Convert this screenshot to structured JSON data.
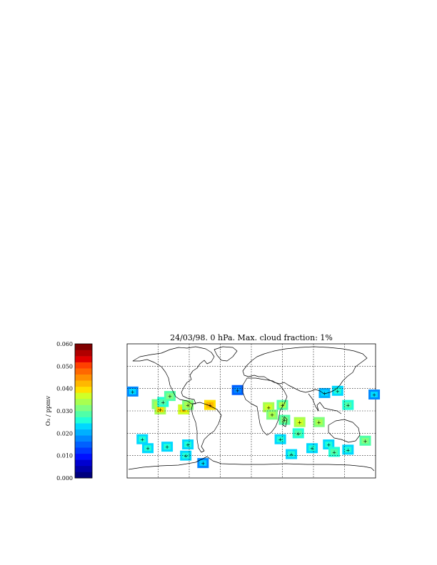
{
  "chart_data": {
    "type": "heatmap",
    "title": "24/03/98. 0 hPa. Max. cloud fraction: 1%",
    "colorbar": {
      "label": "O₃ / ppmv",
      "min": 0.0,
      "max": 0.06,
      "step": 0.0025,
      "tick_labels": [
        "0.000",
        "0.010",
        "0.020",
        "0.030",
        "0.040",
        "0.050",
        "0.060"
      ],
      "tick_values": [
        0.0,
        0.01,
        0.02,
        0.03,
        0.04,
        0.05,
        0.06
      ],
      "colors": [
        "#00007f",
        "#0000a8",
        "#0000d0",
        "#0010ff",
        "#0038ff",
        "#0060ff",
        "#0088ff",
        "#00b0ff",
        "#00d8ff",
        "#20ffd8",
        "#50ffa8",
        "#80ff80",
        "#a8ff50",
        "#d0ff28",
        "#ffe000",
        "#ffb800",
        "#ff9000",
        "#ff6800",
        "#ff4000",
        "#e00000",
        "#b00000",
        "#800000"
      ]
    },
    "map": {
      "lon_range": [
        -180,
        180
      ],
      "lat_range": [
        -90,
        90
      ],
      "grid_lon": [
        -135,
        -90,
        -45,
        0,
        45,
        90,
        135
      ],
      "grid_lat": [
        -60,
        -30,
        0,
        30,
        60
      ],
      "grid": true
    },
    "cells": [
      {
        "lon": -172,
        "lat": 26,
        "value": 0.017
      },
      {
        "lon": -136,
        "lat": 9,
        "value": 0.028
      },
      {
        "lon": -132,
        "lat": 2,
        "value": 0.032
      },
      {
        "lon": -128,
        "lat": 12,
        "value": 0.024
      },
      {
        "lon": -118,
        "lat": 20,
        "value": 0.026
      },
      {
        "lon": -98,
        "lat": 2,
        "value": 0.033
      },
      {
        "lon": -92,
        "lat": 8,
        "value": 0.029
      },
      {
        "lon": -60,
        "lat": 8,
        "value": 0.035
      },
      {
        "lon": -158,
        "lat": -38,
        "value": 0.022
      },
      {
        "lon": -150,
        "lat": -50,
        "value": 0.021
      },
      {
        "lon": -122,
        "lat": -48,
        "value": 0.02
      },
      {
        "lon": -92,
        "lat": -45,
        "value": 0.021
      },
      {
        "lon": -95,
        "lat": -60,
        "value": 0.02
      },
      {
        "lon": -70,
        "lat": -70,
        "value": 0.017
      },
      {
        "lon": -20,
        "lat": 28,
        "value": 0.014
      },
      {
        "lon": 25,
        "lat": 5,
        "value": 0.031
      },
      {
        "lon": 30,
        "lat": -5,
        "value": 0.029
      },
      {
        "lon": 45,
        "lat": 8,
        "value": 0.027
      },
      {
        "lon": 48,
        "lat": -12,
        "value": 0.025
      },
      {
        "lon": 70,
        "lat": -15,
        "value": 0.03
      },
      {
        "lon": 68,
        "lat": -30,
        "value": 0.024
      },
      {
        "lon": 42,
        "lat": -38,
        "value": 0.022
      },
      {
        "lon": 58,
        "lat": -58,
        "value": 0.022
      },
      {
        "lon": 98,
        "lat": -15,
        "value": 0.028
      },
      {
        "lon": 106,
        "lat": 24,
        "value": 0.018
      },
      {
        "lon": 125,
        "lat": 27,
        "value": 0.02
      },
      {
        "lon": 140,
        "lat": 8,
        "value": 0.024
      },
      {
        "lon": 88,
        "lat": -50,
        "value": 0.022
      },
      {
        "lon": 112,
        "lat": -45,
        "value": 0.021
      },
      {
        "lon": 120,
        "lat": -55,
        "value": 0.023
      },
      {
        "lon": 140,
        "lat": -52,
        "value": 0.02
      },
      {
        "lon": 165,
        "lat": -40,
        "value": 0.026
      },
      {
        "lon": 178,
        "lat": 22,
        "value": 0.017
      }
    ],
    "xlabel": "",
    "ylabel": ""
  }
}
